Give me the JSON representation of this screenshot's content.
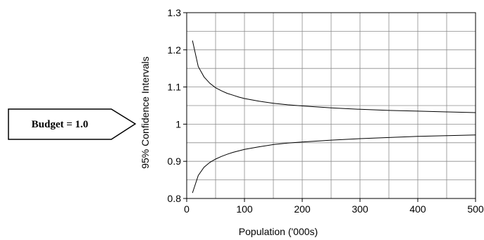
{
  "callout": {
    "label": "Budget = 1.0"
  },
  "chart_data": {
    "type": "line",
    "title": "",
    "xlabel": "Population ('000s)",
    "ylabel": "95% Confidence Intervals",
    "xlim": [
      0,
      500
    ],
    "ylim": [
      0.8,
      1.3
    ],
    "x_ticks": [
      0,
      100,
      200,
      300,
      400,
      500
    ],
    "y_ticks": [
      0.8,
      0.9,
      1,
      1.1,
      1.2,
      1.3
    ],
    "x_tick_labels": [
      "0",
      "100",
      "200",
      "300",
      "400",
      "500"
    ],
    "y_tick_labels": [
      "0.8",
      "0.9",
      "1",
      "1.1",
      "1.2",
      "1.3"
    ],
    "grid": true,
    "x_grid_step": 50,
    "y_grid_step": 0.05,
    "series": [
      {
        "x": [
          10,
          20,
          30,
          40,
          50,
          60,
          70,
          80,
          90,
          100,
          125,
          150,
          175,
          200,
          250,
          300,
          350,
          400,
          450,
          500
        ],
        "values": [
          1.225,
          1.155,
          1.127,
          1.11,
          1.098,
          1.09,
          1.083,
          1.078,
          1.073,
          1.069,
          1.062,
          1.056,
          1.052,
          1.049,
          1.044,
          1.04,
          1.037,
          1.035,
          1.033,
          1.031
        ]
      },
      {
        "x": [
          10,
          20,
          30,
          40,
          50,
          60,
          70,
          80,
          90,
          100,
          125,
          150,
          175,
          200,
          250,
          300,
          350,
          400,
          450,
          500
        ],
        "values": [
          0.815,
          0.862,
          0.884,
          0.897,
          0.906,
          0.913,
          0.919,
          0.924,
          0.928,
          0.932,
          0.939,
          0.945,
          0.949,
          0.952,
          0.957,
          0.961,
          0.964,
          0.967,
          0.969,
          0.971
        ]
      }
    ]
  }
}
